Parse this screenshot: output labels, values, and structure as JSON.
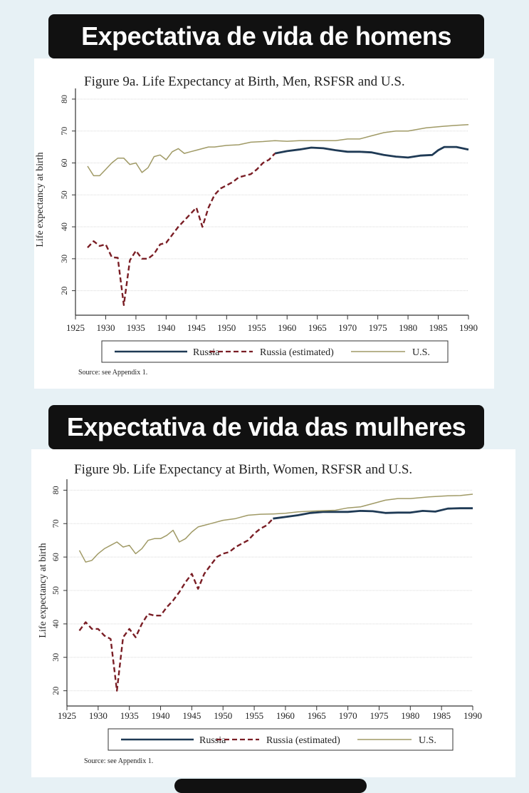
{
  "banners": {
    "top": "Expectativa de vida de homens",
    "bottom": "Expectativa de vida das mulheres"
  },
  "chart_data": [
    {
      "type": "line",
      "title": "Figure 9a.  Life Expectancy at Birth, Men, RSFSR and U.S.",
      "ylabel": "Life expectancy at birth",
      "xlim": [
        1925,
        1990
      ],
      "ylim": [
        15,
        82
      ],
      "x_ticks": [
        1925,
        1930,
        1935,
        1940,
        1945,
        1950,
        1955,
        1960,
        1965,
        1970,
        1975,
        1980,
        1985,
        1990
      ],
      "y_ticks": [
        20,
        30,
        40,
        50,
        60,
        70,
        80
      ],
      "grid": true,
      "legend_position": "bottom",
      "source": "Source:  see Appendix 1.",
      "series": [
        {
          "name": "Russia",
          "style": "solid",
          "color": "#1f3a55",
          "x": [
            1958,
            1960,
            1962,
            1964,
            1966,
            1968,
            1970,
            1972,
            1974,
            1976,
            1978,
            1980,
            1982,
            1984,
            1985,
            1986,
            1988,
            1990
          ],
          "y": [
            63.0,
            63.7,
            64.2,
            64.8,
            64.6,
            64.0,
            63.5,
            63.5,
            63.3,
            62.5,
            62.0,
            61.7,
            62.3,
            62.5,
            64.0,
            65.0,
            65.0,
            64.2
          ]
        },
        {
          "name": "Russia (estimated)",
          "style": "dashed",
          "color": "#7a1e25",
          "x": [
            1927,
            1928,
            1929,
            1930,
            1931,
            1932,
            1933,
            1934,
            1935,
            1936,
            1937,
            1938,
            1939,
            1940,
            1941,
            1942,
            1943,
            1944,
            1945,
            1946,
            1947,
            1948,
            1949,
            1950,
            1951,
            1952,
            1953,
            1954,
            1955,
            1956,
            1957,
            1958
          ],
          "y": [
            33.5,
            35.5,
            34.0,
            34.5,
            30.5,
            30.3,
            15.5,
            29.5,
            32.5,
            30.0,
            30.0,
            31.5,
            34.5,
            35.0,
            37.5,
            40.0,
            42.0,
            44.0,
            46.0,
            40.0,
            46.0,
            50.0,
            52.0,
            53.0,
            54.0,
            55.5,
            56.0,
            56.5,
            58.0,
            60.0,
            61.0,
            63.0
          ]
        },
        {
          "name": "U.S.",
          "style": "solid",
          "color": "#a09a66",
          "x": [
            1927,
            1928,
            1929,
            1930,
            1931,
            1932,
            1933,
            1934,
            1935,
            1936,
            1937,
            1938,
            1939,
            1940,
            1941,
            1942,
            1943,
            1944,
            1945,
            1946,
            1947,
            1948,
            1950,
            1952,
            1954,
            1956,
            1958,
            1960,
            1962,
            1965,
            1968,
            1970,
            1972,
            1974,
            1976,
            1978,
            1980,
            1983,
            1986,
            1988,
            1990
          ],
          "y": [
            59.0,
            56.0,
            56.0,
            58.0,
            60.0,
            61.5,
            61.5,
            59.5,
            60.0,
            57.0,
            58.5,
            62.0,
            62.5,
            61.0,
            63.5,
            64.5,
            63.0,
            63.5,
            64.0,
            64.5,
            65.0,
            65.0,
            65.5,
            65.7,
            66.5,
            66.7,
            67.0,
            66.8,
            67.0,
            67.0,
            67.0,
            67.5,
            67.5,
            68.5,
            69.5,
            70.0,
            70.0,
            71.0,
            71.5,
            71.8,
            72.0
          ]
        }
      ]
    },
    {
      "type": "line",
      "title": "Figure 9b.  Life Expectancy at Birth, Women, RSFSR and U.S.",
      "ylabel": "Life expectancy at birth",
      "xlim": [
        1925,
        1990
      ],
      "ylim": [
        18,
        82
      ],
      "x_ticks": [
        1925,
        1930,
        1935,
        1940,
        1945,
        1950,
        1955,
        1960,
        1965,
        1970,
        1975,
        1980,
        1985,
        1990
      ],
      "y_ticks": [
        20,
        30,
        40,
        50,
        60,
        70,
        80
      ],
      "grid": true,
      "legend_position": "bottom",
      "source": "Source:  see Appendix 1.",
      "series": [
        {
          "name": "Russia",
          "style": "solid",
          "color": "#1f3a55",
          "x": [
            1958,
            1960,
            1962,
            1964,
            1966,
            1968,
            1970,
            1972,
            1974,
            1976,
            1978,
            1980,
            1982,
            1984,
            1986,
            1988,
            1990
          ],
          "y": [
            71.5,
            72.0,
            72.5,
            73.2,
            73.5,
            73.5,
            73.5,
            73.8,
            73.7,
            73.2,
            73.3,
            73.3,
            73.8,
            73.6,
            74.5,
            74.6,
            74.6
          ]
        },
        {
          "name": "Russia (estimated)",
          "style": "dashed",
          "color": "#7a1e25",
          "x": [
            1927,
            1928,
            1929,
            1930,
            1931,
            1932,
            1933,
            1934,
            1935,
            1936,
            1937,
            1938,
            1939,
            1940,
            1941,
            1942,
            1943,
            1944,
            1945,
            1946,
            1947,
            1948,
            1949,
            1950,
            1951,
            1952,
            1953,
            1954,
            1955,
            1956,
            1957,
            1958
          ],
          "y": [
            38.0,
            40.5,
            38.5,
            38.5,
            36.5,
            35.5,
            20.0,
            36.0,
            38.5,
            36.0,
            40.0,
            43.0,
            42.5,
            42.5,
            45.0,
            47.0,
            49.5,
            52.5,
            55.0,
            50.5,
            55.0,
            57.5,
            60.0,
            61.0,
            61.5,
            63.0,
            64.0,
            65.0,
            67.0,
            68.5,
            69.5,
            71.5
          ]
        },
        {
          "name": "U.S.",
          "style": "solid",
          "color": "#a09a66",
          "x": [
            1927,
            1928,
            1929,
            1930,
            1931,
            1932,
            1933,
            1934,
            1935,
            1936,
            1937,
            1938,
            1939,
            1940,
            1941,
            1942,
            1943,
            1944,
            1945,
            1946,
            1947,
            1948,
            1950,
            1952,
            1954,
            1956,
            1958,
            1960,
            1962,
            1965,
            1968,
            1970,
            1972,
            1974,
            1976,
            1978,
            1980,
            1983,
            1986,
            1988,
            1990
          ],
          "y": [
            62.0,
            58.5,
            59.0,
            61.0,
            62.5,
            63.5,
            64.5,
            63.0,
            63.5,
            61.0,
            62.5,
            65.0,
            65.5,
            65.5,
            66.5,
            68.0,
            64.5,
            65.5,
            67.5,
            69.0,
            69.5,
            70.0,
            71.0,
            71.5,
            72.5,
            72.8,
            72.9,
            73.1,
            73.5,
            73.8,
            74.0,
            74.7,
            75.0,
            76.0,
            77.0,
            77.5,
            77.5,
            78.0,
            78.3,
            78.4,
            78.8
          ]
        }
      ]
    }
  ]
}
